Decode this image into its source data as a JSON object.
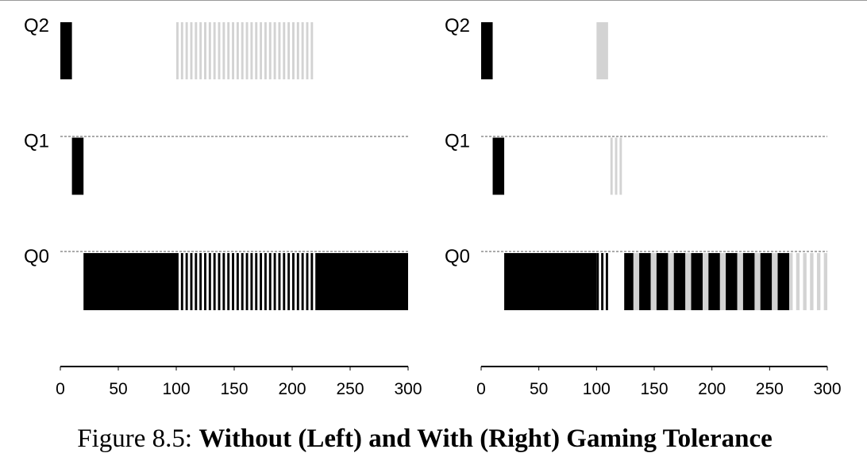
{
  "caption": {
    "prefix": "Figure 8.5:",
    "title": "Without (Left) and With (Right) Gaming Tolerance"
  },
  "colors": {
    "cpu_hog": "#000000",
    "gamer": "#d3d3d3",
    "axis": "#000000",
    "divider": "#555555"
  },
  "chart_data": [
    {
      "type": "timeline",
      "panel": "left",
      "queues": [
        "Q2",
        "Q1",
        "Q0"
      ],
      "x_ticks": [
        0,
        50,
        100,
        150,
        200,
        250,
        300
      ],
      "xlim": [
        0,
        300
      ],
      "blocks": [
        {
          "job": "long",
          "queue": "Q2",
          "start": 0,
          "end": 10
        },
        {
          "job": "long",
          "queue": "Q1",
          "start": 10,
          "end": 20
        },
        {
          "job": "long",
          "queue": "Q0",
          "start": 20,
          "end": 100
        },
        {
          "job": "long",
          "queue": "Q0",
          "start": 100,
          "end": 220,
          "pattern": "alternating",
          "slice": 2
        },
        {
          "job": "gamer",
          "queue": "Q2",
          "start": 100,
          "end": 220,
          "pattern": "alternating",
          "slice": 2
        },
        {
          "job": "long",
          "queue": "Q0",
          "start": 220,
          "end": 300
        }
      ]
    },
    {
      "type": "timeline",
      "panel": "right",
      "queues": [
        "Q2",
        "Q1",
        "Q0"
      ],
      "x_ticks": [
        0,
        50,
        100,
        150,
        200,
        250,
        300
      ],
      "xlim": [
        0,
        300
      ],
      "blocks": [
        {
          "job": "long",
          "queue": "Q2",
          "start": 0,
          "end": 10
        },
        {
          "job": "long",
          "queue": "Q1",
          "start": 10,
          "end": 20
        },
        {
          "job": "long",
          "queue": "Q0",
          "start": 20,
          "end": 100
        },
        {
          "job": "gamer",
          "queue": "Q2",
          "start": 100,
          "end": 110
        },
        {
          "job": "long",
          "queue": "Q0",
          "start": 100,
          "end": 112,
          "pattern": "alternating",
          "slice": 2
        },
        {
          "job": "gamer",
          "queue": "Q1",
          "start": 112,
          "end": 124,
          "pattern": "alternating",
          "slice": 2
        },
        {
          "job": "long",
          "queue": "Q0",
          "start": 124,
          "end": 132
        },
        {
          "job": "gamer",
          "queue": "Q0",
          "start": 132,
          "end": 137
        },
        {
          "job": "long",
          "queue": "Q0",
          "start": 137,
          "end": 147
        },
        {
          "job": "gamer",
          "queue": "Q0",
          "start": 147,
          "end": 152
        },
        {
          "job": "long",
          "queue": "Q0",
          "start": 152,
          "end": 162
        },
        {
          "job": "gamer",
          "queue": "Q0",
          "start": 162,
          "end": 167
        },
        {
          "job": "long",
          "queue": "Q0",
          "start": 167,
          "end": 177
        },
        {
          "job": "gamer",
          "queue": "Q0",
          "start": 177,
          "end": 182
        },
        {
          "job": "long",
          "queue": "Q0",
          "start": 182,
          "end": 192
        },
        {
          "job": "gamer",
          "queue": "Q0",
          "start": 192,
          "end": 197
        },
        {
          "job": "long",
          "queue": "Q0",
          "start": 197,
          "end": 207
        },
        {
          "job": "gamer",
          "queue": "Q0",
          "start": 207,
          "end": 212
        },
        {
          "job": "long",
          "queue": "Q0",
          "start": 212,
          "end": 222
        },
        {
          "job": "gamer",
          "queue": "Q0",
          "start": 222,
          "end": 227
        },
        {
          "job": "long",
          "queue": "Q0",
          "start": 227,
          "end": 237
        },
        {
          "job": "gamer",
          "queue": "Q0",
          "start": 237,
          "end": 242
        },
        {
          "job": "long",
          "queue": "Q0",
          "start": 242,
          "end": 252
        },
        {
          "job": "gamer",
          "queue": "Q0",
          "start": 252,
          "end": 257
        },
        {
          "job": "long",
          "queue": "Q0",
          "start": 257,
          "end": 267
        },
        {
          "job": "gamer",
          "queue": "Q0",
          "start": 267,
          "end": 300,
          "pattern": "alternating",
          "slice": 3
        }
      ]
    }
  ]
}
